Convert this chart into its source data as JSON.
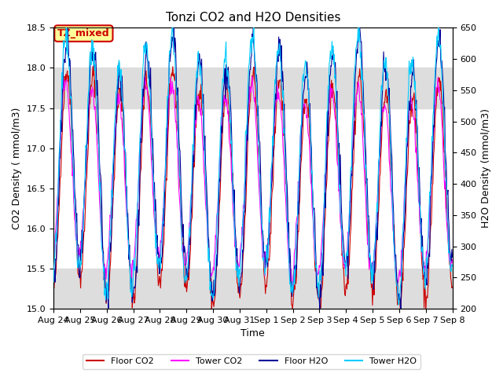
{
  "title": "Tonzi CO2 and H2O Densities",
  "xlabel": "Time",
  "ylabel_left": "CO2 Density ( mmol/m3)",
  "ylabel_right": "H2O Density (mmol/m3)",
  "ylim_left": [
    15.0,
    18.5
  ],
  "ylim_right": [
    200,
    650
  ],
  "yticks_left": [
    15.0,
    15.5,
    16.0,
    16.5,
    17.0,
    17.5,
    18.0,
    18.5
  ],
  "yticks_right": [
    200,
    250,
    300,
    350,
    400,
    450,
    500,
    550,
    600,
    650
  ],
  "colors": {
    "floor_co2": "#CC0000",
    "tower_co2": "#FF00FF",
    "floor_h2o": "#000099",
    "tower_h2o": "#00CCFF"
  },
  "annotation_text": "TZ_mixed",
  "annotation_color": "#CC0000",
  "annotation_bg": "#FFFF99",
  "annotation_border": "#CC0000",
  "n_days": 15,
  "n_points_per_day": 48,
  "shade_color": "#DDDDDD",
  "legend_entries": [
    "Floor CO2",
    "Tower CO2",
    "Floor H2O",
    "Tower H2O"
  ],
  "tick_date_labels": [
    "Aug 24",
    "Aug 25",
    "Aug 26",
    "Aug 27",
    "Aug 28",
    "Aug 29",
    "Aug 30",
    "Aug 31",
    "Sep 1",
    "Sep 2",
    "Sep 3",
    "Sep 4",
    "Sep 5",
    "Sep 6",
    "Sep 7",
    "Sep 8"
  ]
}
